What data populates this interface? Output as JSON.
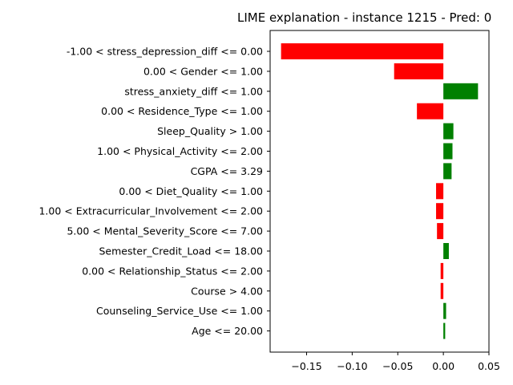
{
  "chart_data": {
    "type": "bar",
    "orientation": "horizontal",
    "title": "LIME explanation - instance 1215 - Pred: 0",
    "xlabel": "",
    "ylabel": "",
    "xlim": [
      -0.19,
      0.05
    ],
    "xticks": [
      -0.15,
      -0.1,
      -0.05,
      0.0,
      0.05
    ],
    "xtick_labels": [
      "−0.15",
      "−0.10",
      "−0.05",
      "0.00",
      "0.05"
    ],
    "grid": false,
    "colors": {
      "negative": "#ff0000",
      "positive": "#008000"
    },
    "categories": [
      "-1.00 < stress_depression_diff <= 0.00",
      "0.00 < Gender <= 1.00",
      "stress_anxiety_diff <= 1.00",
      "0.00 < Residence_Type <= 1.00",
      "Sleep_Quality > 1.00",
      "1.00 < Physical_Activity <= 2.00",
      "CGPA <= 3.29",
      "0.00 < Diet_Quality <= 1.00",
      "1.00 < Extracurricular_Involvement <= 2.00",
      "5.00 < Mental_Severity_Score <= 7.00",
      "Semester_Credit_Load <= 18.00",
      "0.00 < Relationship_Status <= 2.00",
      "Course > 4.00",
      "Counseling_Service_Use <= 1.00",
      "Age <= 20.00"
    ],
    "values": [
      -0.178,
      -0.054,
      0.038,
      -0.029,
      0.011,
      0.01,
      0.009,
      -0.008,
      -0.008,
      -0.007,
      0.006,
      -0.003,
      -0.003,
      0.003,
      0.002
    ]
  }
}
